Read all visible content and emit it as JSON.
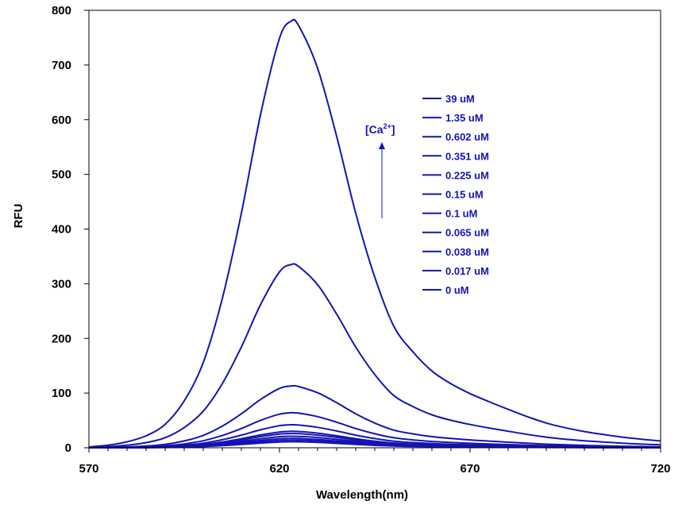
{
  "chart_data": {
    "type": "line",
    "title": "",
    "xlabel": "Wavelength(nm)",
    "ylabel": "RFU",
    "xlim": [
      570,
      720
    ],
    "ylim": [
      0,
      800
    ],
    "xticks": [
      570,
      620,
      670,
      720
    ],
    "yticks": [
      0,
      100,
      200,
      300,
      400,
      500,
      600,
      700,
      800
    ],
    "grid": false,
    "legend_position": "top-right",
    "line_color": "#1414b4",
    "annotation": {
      "text": "[Ca",
      "superscript": "2+",
      "suffix": "]",
      "arrow": "up"
    },
    "peak_wavelength": 623,
    "series": [
      {
        "name": "39 uM",
        "peak": 780
      },
      {
        "name": "1.35 uM",
        "peak": 335
      },
      {
        "name": "0.602 uM",
        "peak": 113
      },
      {
        "name": "0.351 uM",
        "peak": 64
      },
      {
        "name": "0.225 uM",
        "peak": 42
      },
      {
        "name": "0.15 uM",
        "peak": 30
      },
      {
        "name": "0.1 uM",
        "peak": 26
      },
      {
        "name": "0.065 uM",
        "peak": 21
      },
      {
        "name": "0.038 uM",
        "peak": 17
      },
      {
        "name": "0.017 uM",
        "peak": 14
      },
      {
        "name": "0 uM",
        "peak": 11
      }
    ],
    "normalized_profile": {
      "x": [
        570,
        575,
        580,
        585,
        590,
        595,
        600,
        605,
        610,
        615,
        620,
        623,
        625,
        630,
        635,
        640,
        645,
        650,
        655,
        660,
        665,
        670,
        675,
        680,
        685,
        690,
        695,
        700,
        705,
        710,
        715,
        720
      ],
      "y": [
        0.002,
        0.006,
        0.014,
        0.028,
        0.055,
        0.11,
        0.2,
        0.35,
        0.55,
        0.78,
        0.96,
        1.0,
        0.99,
        0.89,
        0.73,
        0.55,
        0.4,
        0.285,
        0.225,
        0.18,
        0.15,
        0.127,
        0.108,
        0.09,
        0.073,
        0.058,
        0.047,
        0.038,
        0.031,
        0.025,
        0.02,
        0.016
      ]
    }
  }
}
